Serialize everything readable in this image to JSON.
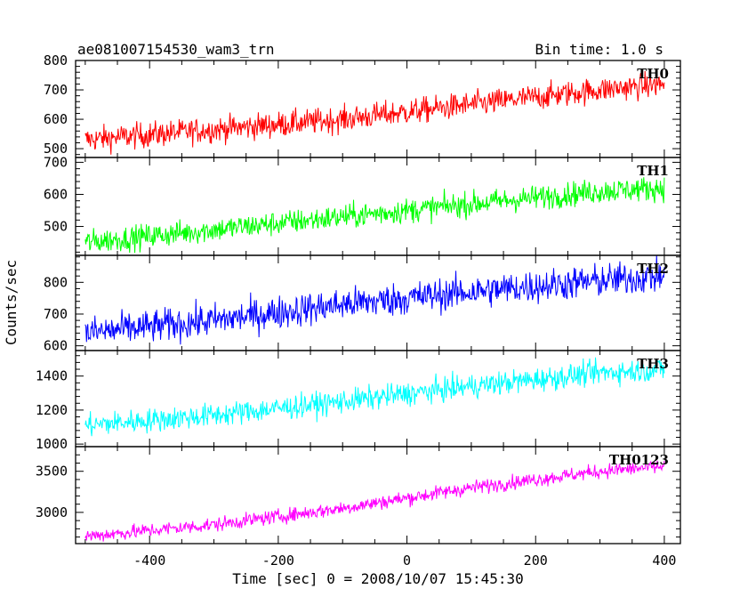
{
  "header": {
    "title": "ae081007154530_wam3_trn",
    "bin_time": "Bin time: 1.0 s"
  },
  "chart_data": {
    "type": "line",
    "xlabel": "Time [sec] 0 = 2008/10/07 15:45:30",
    "ylabel": "Counts/sec",
    "xlim": [
      -515,
      425
    ],
    "x_ticks": [
      -400,
      -200,
      0,
      200,
      400
    ],
    "x_start": -500,
    "x_end": 400,
    "x_step": 1,
    "panels": [
      {
        "name": "TH0",
        "color": "#ff0000",
        "ylim": [
          470,
          800
        ],
        "yticks": [
          500,
          600,
          700,
          800
        ],
        "trend": [
          [
            -500,
            530
          ],
          [
            -300,
            565
          ],
          [
            -100,
            600
          ],
          [
            100,
            650
          ],
          [
            300,
            700
          ],
          [
            400,
            720
          ]
        ],
        "noise": 25
      },
      {
        "name": "TH1",
        "color": "#00ff00",
        "ylim": [
          410,
          715
        ],
        "yticks": [
          500,
          600,
          700
        ],
        "trend": [
          [
            -500,
            450
          ],
          [
            -300,
            490
          ],
          [
            -100,
            530
          ],
          [
            100,
            570
          ],
          [
            300,
            610
          ],
          [
            400,
            620
          ]
        ],
        "noise": 22
      },
      {
        "name": "TH2",
        "color": "#0000ff",
        "ylim": [
          585,
          885
        ],
        "yticks": [
          600,
          700,
          800
        ],
        "trend": [
          [
            -500,
            640
          ],
          [
            -300,
            680
          ],
          [
            -100,
            730
          ],
          [
            100,
            770
          ],
          [
            300,
            805
          ],
          [
            400,
            820
          ]
        ],
        "noise": 30
      },
      {
        "name": "TH3",
        "color": "#00ffff",
        "ylim": [
          985,
          1550
        ],
        "yticks": [
          1000,
          1200,
          1400
        ],
        "trend": [
          [
            -500,
            1110
          ],
          [
            -300,
            1170
          ],
          [
            -100,
            1250
          ],
          [
            100,
            1340
          ],
          [
            300,
            1420
          ],
          [
            400,
            1440
          ]
        ],
        "noise": 40
      },
      {
        "name": "TH0123",
        "color": "#ff00ff",
        "ylim": [
          2620,
          3800
        ],
        "yticks": [
          3000,
          3500
        ],
        "trend": [
          [
            -500,
            2710
          ],
          [
            -300,
            2850
          ],
          [
            -100,
            3050
          ],
          [
            100,
            3300
          ],
          [
            300,
            3500
          ],
          [
            400,
            3560
          ]
        ],
        "noise": 50
      }
    ]
  }
}
